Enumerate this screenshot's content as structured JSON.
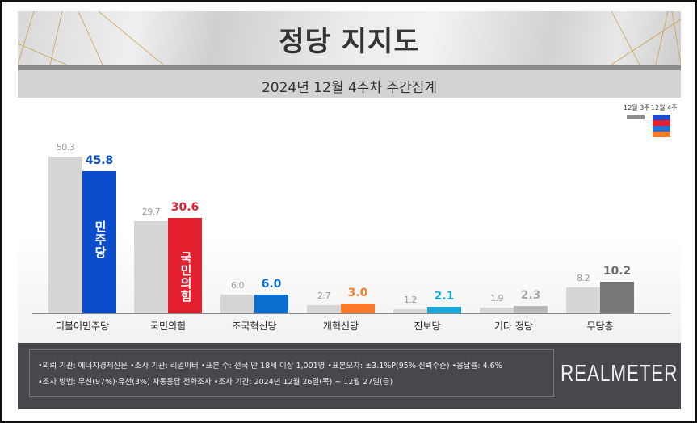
{
  "header": {
    "title": "정당 지지도",
    "subtitle": "2024년 12월 4주차 주간집계"
  },
  "legend": {
    "previous_label": "12월 3주",
    "current_label": "12월 4주",
    "previous_color": "#8c8c8c",
    "current_colors": [
      "#1f49c9",
      "#e4202f",
      "#1f73d8",
      "#fa7a27",
      "#13a8e0"
    ]
  },
  "parties": [
    {
      "name": "더불어민주당",
      "prev": "50.3",
      "cur": "45.8",
      "color": "#0a4ccc",
      "cur_label_color": "#0a4ccc",
      "mark": "민주당"
    },
    {
      "name": "국민의힘",
      "prev": "29.7",
      "cur": "30.6",
      "color": "#e4202f",
      "cur_label_color": "#e4202f",
      "mark": "국민의힘"
    },
    {
      "name": "조국혁신당",
      "prev": "6.0",
      "cur": "6.0",
      "color": "#0a6ed1",
      "cur_label_color": "#0a6ed1",
      "mark": ""
    },
    {
      "name": "개혁신당",
      "prev": "2.7",
      "cur": "3.0",
      "color": "#fb7a2c",
      "cur_label_color": "#fb7a2c",
      "mark": ""
    },
    {
      "name": "진보당",
      "prev": "1.2",
      "cur": "2.1",
      "color": "#17a9dd",
      "cur_label_color": "#17a9dd",
      "mark": ""
    },
    {
      "name": "기타 정당",
      "prev": "1.9",
      "cur": "2.3",
      "color": "#b9b9b9",
      "cur_label_color": "#a9a9a9",
      "mark": ""
    },
    {
      "name": "무당층",
      "prev": "8.2",
      "cur": "10.2",
      "color": "#777777",
      "cur_label_color": "#6a6a6a",
      "mark": ""
    }
  ],
  "chart_data": {
    "type": "bar",
    "title": "정당 지지도",
    "subtitle": "2024년 12월 4주차 주간집계",
    "xlabel": "",
    "ylabel": "",
    "categories": [
      "더불어민주당",
      "국민의힘",
      "조국혁신당",
      "개혁신당",
      "진보당",
      "기타 정당",
      "무당층"
    ],
    "series": [
      {
        "name": "12월 3주",
        "values": [
          50.3,
          29.7,
          6.0,
          2.7,
          1.2,
          1.9,
          8.2
        ]
      },
      {
        "name": "12월 4주",
        "values": [
          45.8,
          30.6,
          6.0,
          3.0,
          2.1,
          2.3,
          10.2
        ]
      }
    ],
    "ylim": [
      0,
      55
    ],
    "grid": false,
    "legend_position": "top-right"
  },
  "footer": {
    "line1": "•의뢰 기관: 에너지경제신문  •조사 기관: 리얼미터 •표본 수: 전국 만 18세 이상 1,001명 •표본오차: ±3.1%P(95% 신뢰수준) •응답률: 4.6%",
    "line2": "•조사 방법: 무선(97%)·유선(3%) 자동응답 전화조사 •조사 기간: 2024년 12월 26일(목) ~ 12월 27일(금)",
    "brand": "REALMETER"
  }
}
